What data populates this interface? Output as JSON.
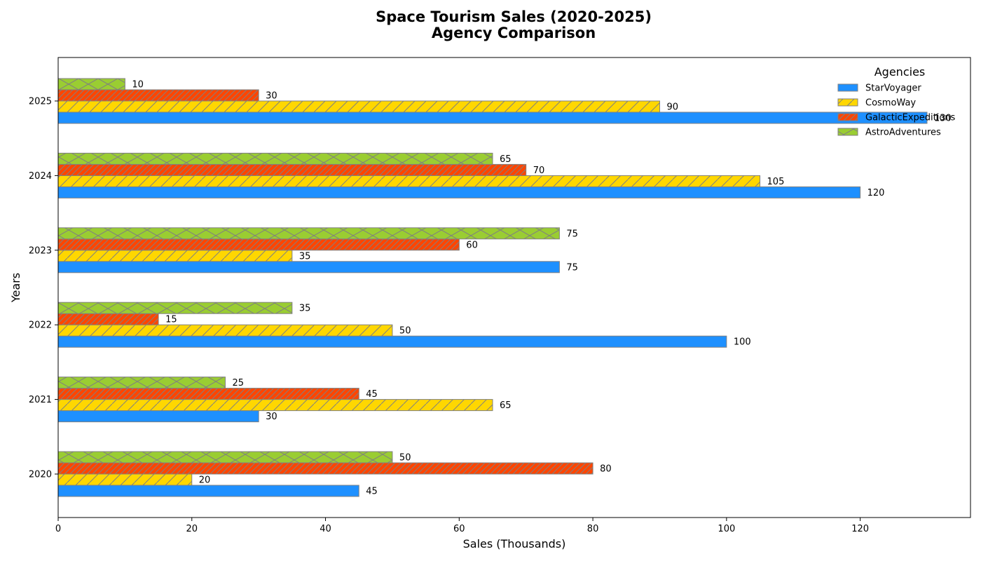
{
  "chart_data": {
    "type": "bar",
    "orientation": "horizontal",
    "title_line1": "Space Tourism Sales (2020-2025)",
    "title_line2": "Agency Comparison",
    "xlabel": "Sales (Thousands)",
    "ylabel": "Years",
    "categories": [
      "2020",
      "2021",
      "2022",
      "2023",
      "2024",
      "2025"
    ],
    "xlim": [
      0,
      136.5
    ],
    "xticks": [
      0,
      20,
      40,
      60,
      80,
      100,
      120
    ],
    "grid": false,
    "legend": {
      "title": "Agencies",
      "placement": "top-right"
    },
    "series": [
      {
        "name": "StarVoyager",
        "color": "#1E90FF",
        "hatch": "none",
        "values": [
          45,
          30,
          100,
          75,
          120,
          130
        ]
      },
      {
        "name": "CosmoWay",
        "color": "#FFD700",
        "hatch": "diagonal",
        "values": [
          20,
          65,
          50,
          35,
          105,
          90
        ]
      },
      {
        "name": "GalacticExpeditions",
        "color": "#FF4500",
        "hatch": "diagonal-dense",
        "values": [
          80,
          45,
          15,
          60,
          70,
          30
        ]
      },
      {
        "name": "AstroAdventures",
        "color": "#9ACD32",
        "hatch": "cross",
        "values": [
          50,
          25,
          35,
          75,
          65,
          10
        ]
      }
    ]
  }
}
